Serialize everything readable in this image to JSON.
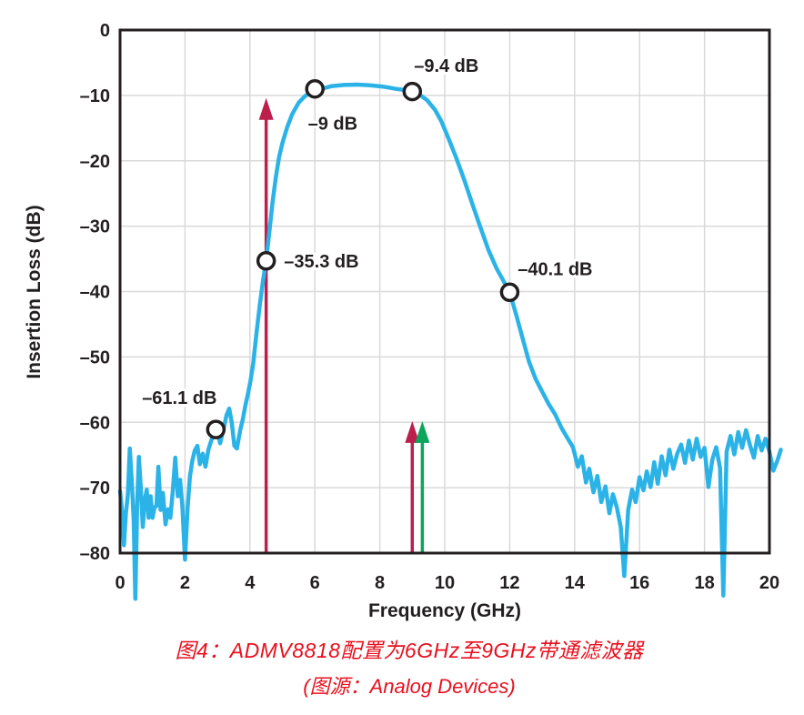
{
  "figure": {
    "caption_line1": "图4：ADMV8818配置为6GHz至9GHz带通滤波器",
    "caption_line2": "(图源：Analog Devices)",
    "caption_color": "#e8101e",
    "background": "#ffffff"
  },
  "chart_data": {
    "type": "line",
    "title": "",
    "xlabel": "Frequency (GHz)",
    "ylabel": "Insertion Loss (dB)",
    "xlim": [
      0,
      20
    ],
    "ylim": [
      -80,
      0
    ],
    "grid": true,
    "legend": "none",
    "x_ticks": [
      0,
      2,
      4,
      6,
      8,
      10,
      12,
      14,
      16,
      18,
      20
    ],
    "x_tick_labels": [
      "0",
      "2",
      "4",
      "6",
      "8",
      "10",
      "12",
      "14",
      "16",
      "18",
      "20"
    ],
    "y_ticks": [
      0,
      -10,
      -20,
      -30,
      -40,
      -50,
      -60,
      -70,
      -80
    ],
    "y_tick_labels": [
      "0",
      "–10",
      "–20",
      "–30",
      "–40",
      "–50",
      "–60",
      "–70",
      "–80"
    ],
    "curve_color": "#2bb3e8",
    "axis_color": "#231f20",
    "grid_color": "#d9d9d9",
    "marker_fill": "#ffffff",
    "series": [
      {
        "name": "Insertion Loss",
        "points": [
          [
            0,
            -70.5
          ],
          [
            0.07,
            -74
          ],
          [
            0.12,
            -78.8
          ],
          [
            0.18,
            -74
          ],
          [
            0.24,
            -71
          ],
          [
            0.3,
            -64
          ],
          [
            0.36,
            -69
          ],
          [
            0.42,
            -75
          ],
          [
            0.47,
            -87
          ],
          [
            0.53,
            -72
          ],
          [
            0.58,
            -65.3
          ],
          [
            0.64,
            -70
          ],
          [
            0.7,
            -76
          ],
          [
            0.76,
            -72
          ],
          [
            0.82,
            -70.3
          ],
          [
            0.88,
            -74.6
          ],
          [
            0.94,
            -71.3
          ],
          [
            1,
            -74.6
          ],
          [
            1.06,
            -73
          ],
          [
            1.12,
            -72.8
          ],
          [
            1.18,
            -66.8
          ],
          [
            1.25,
            -73.4
          ],
          [
            1.32,
            -70.8
          ],
          [
            1.4,
            -75.6
          ],
          [
            1.48,
            -73.3
          ],
          [
            1.55,
            -74.6
          ],
          [
            1.62,
            -70.8
          ],
          [
            1.7,
            -65.4
          ],
          [
            1.78,
            -71.3
          ],
          [
            1.85,
            -68.8
          ],
          [
            1.92,
            -72.8
          ],
          [
            2,
            -81
          ],
          [
            2.08,
            -73
          ],
          [
            2.15,
            -68.3
          ],
          [
            2.22,
            -66
          ],
          [
            2.3,
            -64.3
          ],
          [
            2.38,
            -63.6
          ],
          [
            2.46,
            -66.4
          ],
          [
            2.55,
            -64.8
          ],
          [
            2.63,
            -66.8
          ],
          [
            2.72,
            -64.2
          ],
          [
            2.82,
            -62.6
          ],
          [
            2.92,
            -61.8
          ],
          [
            3,
            -61.4
          ],
          [
            3.08,
            -63.2
          ],
          [
            3.18,
            -61.2
          ],
          [
            3.28,
            -58.9
          ],
          [
            3.36,
            -57.9
          ],
          [
            3.44,
            -60
          ],
          [
            3.52,
            -63.6
          ],
          [
            3.6,
            -64
          ],
          [
            3.7,
            -61.2
          ],
          [
            3.78,
            -59.6
          ],
          [
            3.86,
            -57.4
          ],
          [
            3.94,
            -55.6
          ],
          [
            4.02,
            -53.6
          ],
          [
            4.1,
            -51
          ],
          [
            4.2,
            -46.5
          ],
          [
            4.3,
            -42.2
          ],
          [
            4.4,
            -38.4
          ],
          [
            4.5,
            -35.3
          ],
          [
            4.6,
            -30.8
          ],
          [
            4.7,
            -26.2
          ],
          [
            4.8,
            -22.4
          ],
          [
            4.9,
            -19.4
          ],
          [
            5,
            -17.3
          ],
          [
            5.15,
            -14.8
          ],
          [
            5.3,
            -12.9
          ],
          [
            5.5,
            -11.1
          ],
          [
            5.7,
            -10.1
          ],
          [
            5.9,
            -9.5
          ],
          [
            6,
            -9.3
          ],
          [
            6.2,
            -9
          ],
          [
            6.5,
            -8.6
          ],
          [
            6.9,
            -8.4
          ],
          [
            7.3,
            -8.35
          ],
          [
            7.7,
            -8.45
          ],
          [
            8.1,
            -8.65
          ],
          [
            8.5,
            -9
          ],
          [
            8.8,
            -9.2
          ],
          [
            9,
            -9.4
          ],
          [
            9.2,
            -9.8
          ],
          [
            9.45,
            -10.7
          ],
          [
            9.7,
            -12.2
          ],
          [
            9.9,
            -14
          ],
          [
            10.1,
            -16.4
          ],
          [
            10.35,
            -19.5
          ],
          [
            10.6,
            -22.9
          ],
          [
            10.85,
            -26.6
          ],
          [
            11.1,
            -30.2
          ],
          [
            11.35,
            -33.7
          ],
          [
            11.6,
            -36.5
          ],
          [
            11.8,
            -38.3
          ],
          [
            12,
            -40.1
          ],
          [
            12.2,
            -43.5
          ],
          [
            12.4,
            -47.2
          ],
          [
            12.6,
            -50.8
          ],
          [
            12.8,
            -53.4
          ],
          [
            13,
            -55.3
          ],
          [
            13.2,
            -57.2
          ],
          [
            13.4,
            -58.8
          ],
          [
            13.6,
            -60.9
          ],
          [
            13.8,
            -62.6
          ],
          [
            13.95,
            -63.8
          ],
          [
            14.1,
            -66.8
          ],
          [
            14.22,
            -65.2
          ],
          [
            14.35,
            -69.2
          ],
          [
            14.45,
            -67.1
          ],
          [
            14.58,
            -70.7
          ],
          [
            14.7,
            -68.2
          ],
          [
            14.82,
            -72.2
          ],
          [
            14.95,
            -69.8
          ],
          [
            15.07,
            -73.9
          ],
          [
            15.18,
            -71
          ],
          [
            15.3,
            -73
          ],
          [
            15.42,
            -76
          ],
          [
            15.53,
            -83.5
          ],
          [
            15.65,
            -73.4
          ],
          [
            15.77,
            -70.3
          ],
          [
            15.88,
            -72.2
          ],
          [
            16,
            -68.4
          ],
          [
            16.12,
            -70.4
          ],
          [
            16.22,
            -67.5
          ],
          [
            16.34,
            -69.9
          ],
          [
            16.45,
            -66.1
          ],
          [
            16.56,
            -69.4
          ],
          [
            16.68,
            -65.2
          ],
          [
            16.8,
            -68.1
          ],
          [
            16.92,
            -64.2
          ],
          [
            17.04,
            -67.1
          ],
          [
            17.16,
            -64.8
          ],
          [
            17.28,
            -63.4
          ],
          [
            17.4,
            -66.2
          ],
          [
            17.52,
            -62.8
          ],
          [
            17.64,
            -65.7
          ],
          [
            17.76,
            -62.5
          ],
          [
            17.88,
            -65.3
          ],
          [
            18,
            -63.9
          ],
          [
            18.12,
            -69.9
          ],
          [
            18.24,
            -65.7
          ],
          [
            18.36,
            -63.8
          ],
          [
            18.48,
            -67
          ],
          [
            18.58,
            -86.5
          ],
          [
            18.68,
            -64.5
          ],
          [
            18.8,
            -62.1
          ],
          [
            18.92,
            -64.9
          ],
          [
            19.04,
            -61.5
          ],
          [
            19.16,
            -63.9
          ],
          [
            19.28,
            -61.2
          ],
          [
            19.4,
            -63.5
          ],
          [
            19.52,
            -65.4
          ],
          [
            19.64,
            -62.1
          ],
          [
            19.76,
            -64.3
          ],
          [
            19.88,
            -62.5
          ],
          [
            20,
            -64.5
          ],
          [
            20.12,
            -67.4
          ],
          [
            20.25,
            -65.8
          ],
          [
            20.35,
            -64.2
          ]
        ]
      }
    ],
    "annotated_points": [
      {
        "ghz": 2.95,
        "db": -61.1,
        "label": "–61.1 dB",
        "label_ghz": 1.83,
        "label_db": -57.2,
        "anchor": "middle"
      },
      {
        "ghz": 4.5,
        "db": -35.3,
        "label": "–35.3 dB",
        "label_ghz": 5.05,
        "label_db": -36.3,
        "anchor": "start"
      },
      {
        "ghz": 6.0,
        "db": -9.0,
        "label": "–9 dB",
        "label_ghz": 6.55,
        "label_db": -15.2,
        "anchor": "middle"
      },
      {
        "ghz": 9.0,
        "db": -9.4,
        "label": "–9.4 dB",
        "label_ghz": 10.05,
        "label_db": -6.4,
        "anchor": "middle"
      },
      {
        "ghz": 12.0,
        "db": -40.1,
        "label": "–40.1 dB",
        "label_ghz": 13.4,
        "label_db": -37.5,
        "anchor": "middle"
      }
    ],
    "arrows": [
      {
        "name": "red-arrow-4_5ghz",
        "ghz": 4.5,
        "tip_db": -10.4,
        "color": "#bc1f4c"
      },
      {
        "name": "red-arrow-9ghz",
        "ghz": 9.0,
        "tip_db": -59.8,
        "color": "#bc1f4c"
      },
      {
        "name": "green-arrow-9_3ghz",
        "ghz": 9.31,
        "tip_db": -59.8,
        "color": "#0ba55c"
      }
    ]
  }
}
